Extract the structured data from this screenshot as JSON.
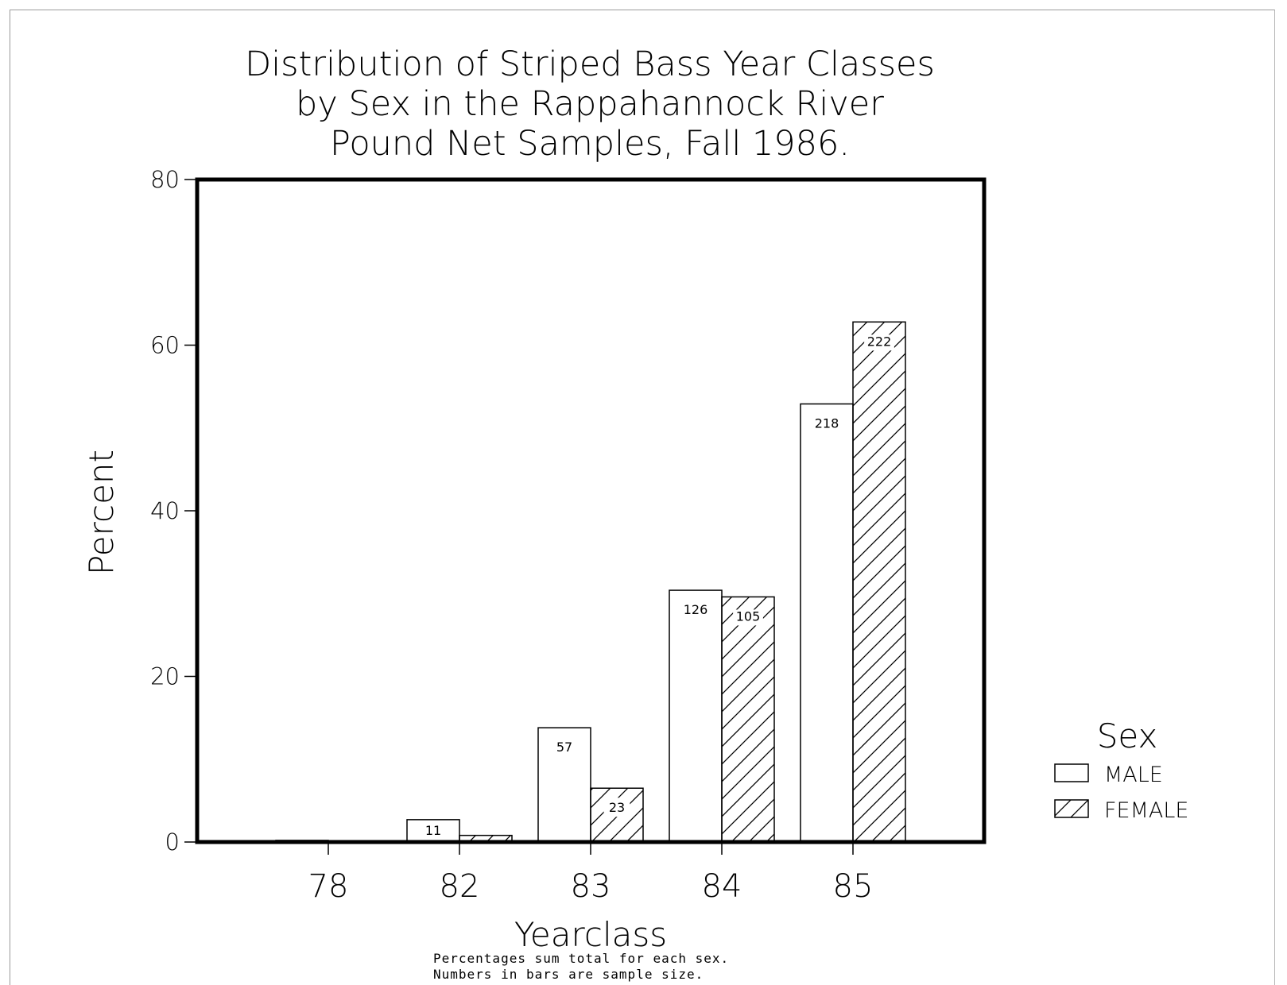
{
  "chart_data": {
    "type": "bar",
    "title_lines": [
      "Distribution of Striped Bass Year Classes",
      "by Sex in the Rappahannock River",
      "Pound Net Samples, Fall 1986."
    ],
    "xlabel": "Yearclass",
    "ylabel": "Percent",
    "categories": [
      "78",
      "82",
      "83",
      "84",
      "85"
    ],
    "ylim": [
      0,
      80
    ],
    "yticks": [
      "0",
      "20",
      "40",
      "60",
      "80"
    ],
    "series": [
      {
        "name": "MALE",
        "values": [
          0.2,
          2.7,
          13.8,
          30.4,
          52.9
        ],
        "labels": [
          "",
          "11",
          "57",
          "126",
          "218"
        ],
        "fill": "#ffffff"
      },
      {
        "name": "FEMALE",
        "values": [
          0.1,
          0.8,
          6.5,
          29.6,
          62.8
        ],
        "labels": [
          "",
          "",
          "23",
          "105",
          "222"
        ],
        "fill": "hatch"
      }
    ],
    "legend": {
      "title": "Sex",
      "position": "right"
    },
    "notes": [
      "Percentages sum total for each sex.",
      "Numbers in bars are sample size."
    ],
    "grid": false
  }
}
